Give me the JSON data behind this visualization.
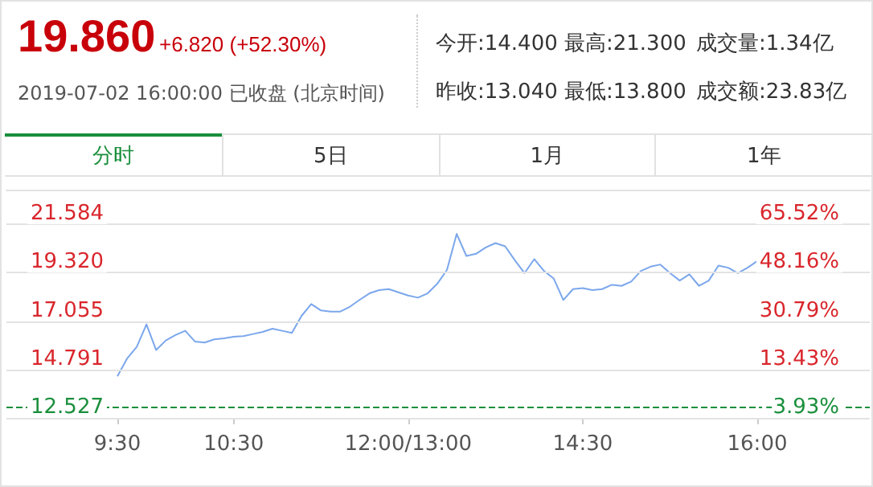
{
  "chart_data": [
    {
      "type": "other",
      "annotations": [
        "19.860",
        "+6.820 (+52.30%)",
        "2019-07-02 16:00:00 已收盘 (北京时间)",
        "今开:14.400",
        "最高:21.300",
        "成交量:1.34亿",
        "昨收:13.040",
        "最低:13.800",
        "成交额:23.83亿",
        "分时",
        "5日",
        "1月",
        "1年"
      ]
    },
    {
      "type": "line",
      "color": "#7ba7ec",
      "categories": [
        "9:30",
        null,
        null,
        null,
        null,
        null,
        null,
        null,
        null,
        null,
        null,
        null,
        "10:30",
        null,
        null,
        null,
        null,
        null,
        null,
        null,
        null,
        null,
        null,
        null,
        null,
        null,
        null,
        null,
        null,
        null,
        "12:00/13:00",
        null,
        null,
        null,
        null,
        null,
        null,
        null,
        null,
        null,
        null,
        null,
        null,
        null,
        null,
        null,
        null,
        null,
        "14:30",
        null,
        null,
        null,
        null,
        null,
        null,
        null,
        null,
        null,
        null,
        null,
        null,
        null,
        null,
        null,
        null,
        null,
        "16:00"
      ],
      "values": [
        14.47,
        15.3,
        15.85,
        16.9,
        15.7,
        16.15,
        16.4,
        16.6,
        16.1,
        16.05,
        16.2,
        16.25,
        16.32,
        16.35,
        16.45,
        16.55,
        16.7,
        16.6,
        16.5,
        17.3,
        17.85,
        17.55,
        17.5,
        17.5,
        17.73,
        18.05,
        18.35,
        18.5,
        18.55,
        18.4,
        18.25,
        18.15,
        18.35,
        18.8,
        19.45,
        21.13,
        20.1,
        20.2,
        20.5,
        20.7,
        20.55,
        19.9,
        19.3,
        19.95,
        19.4,
        19.05,
        18.04,
        18.55,
        18.6,
        18.5,
        18.55,
        18.75,
        18.7,
        18.9,
        19.4,
        19.6,
        19.7,
        19.3,
        18.95,
        19.24,
        18.7,
        18.95,
        19.65,
        19.55,
        19.3,
        19.55,
        19.86
      ],
      "ylim": [
        12.527,
        23.2
      ],
      "yticks": [
        12.527,
        14.791,
        17.055,
        {
          "value": 19.32,
          "label": "19.320"
        },
        21.584
      ],
      "y2lim": [
        -3.93,
        77.91
      ],
      "y2ticks": [
        {
          "value": -3.93,
          "label": "-3.93%"
        },
        {
          "value": 13.43,
          "label": "13.43%"
        },
        {
          "value": 30.79,
          "label": "30.79%"
        },
        {
          "value": 48.16,
          "label": "48.16%"
        },
        {
          "value": 65.52,
          "label": "65.52%"
        }
      ],
      "ref_lines": [
        {
          "axis": "y",
          "value": 13.04,
          "color": "#1a8f3c",
          "line_style": "dashed"
        }
      ],
      "grid": "y"
    }
  ]
}
